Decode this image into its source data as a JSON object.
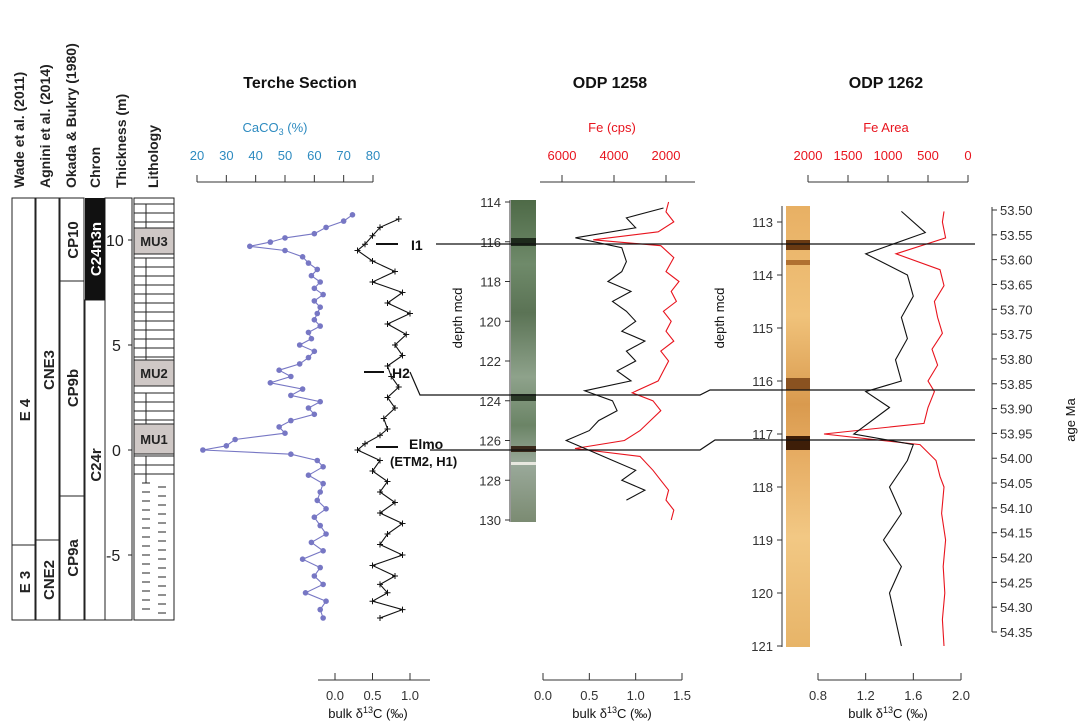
{
  "strat_headers": [
    "Wade et al. (2011)",
    "Agnini et al. (2014)",
    "Okada & Bukry (1980)",
    "Chron",
    "Thickness (m)",
    "Lithology"
  ],
  "zones": {
    "wade": [
      "E 4",
      "E 3"
    ],
    "agnini": [
      "CNE3",
      "CNE2"
    ],
    "okada": [
      "CP10",
      "CP9b",
      "CP9a"
    ],
    "chron": [
      "C24n3n",
      "C24r"
    ]
  },
  "thickness_ticks": [
    "10",
    "5",
    "0",
    "-5"
  ],
  "mud_units": [
    "MU3",
    "MU2",
    "MU1"
  ],
  "events": [
    {
      "label": "I1",
      "thick_m": 9.6
    },
    {
      "label": "H2",
      "thick_m": 3.7
    },
    {
      "label": "Elmo",
      "sublabel": "(ETM2, H1)",
      "thick_m": 0.2
    }
  ],
  "terche": {
    "title": "Terche Section",
    "caco3_label": "CaCO3 (%)",
    "caco3_ticks": [
      "20",
      "30",
      "40",
      "50",
      "60",
      "70",
      "80"
    ],
    "d13c_label": "bulk δ13C (‰)",
    "d13c_ticks": [
      "0.0",
      "0.5",
      "1.0"
    ]
  },
  "odp1258": {
    "title": "ODP 1258",
    "fe_label": "Fe (cps)",
    "fe_ticks": [
      "6000",
      "4000",
      "2000"
    ],
    "depth_label": "depth mcd",
    "depth_ticks": [
      "114",
      "116",
      "118",
      "120",
      "122",
      "124",
      "126",
      "128",
      "130"
    ],
    "d13c_label": "bulk δ13C (‰)",
    "d13c_ticks": [
      "0.0",
      "0.5",
      "1.0",
      "1.5"
    ]
  },
  "odp1262": {
    "title": "ODP 1262",
    "fe_label": "Fe Area",
    "fe_ticks": [
      "2000",
      "1500",
      "1000",
      "500",
      "0"
    ],
    "depth_label": "depth mcd",
    "depth_ticks": [
      "113",
      "114",
      "115",
      "116",
      "117",
      "118",
      "119",
      "120",
      "121"
    ],
    "d13c_label": "bulk δ13C (‰)",
    "d13c_ticks": [
      "0.8",
      "1.2",
      "1.6",
      "2.0"
    ]
  },
  "age_axis": {
    "label": "age Ma",
    "ticks": [
      "53.50",
      "53.55",
      "53.60",
      "53.65",
      "53.70",
      "53.75",
      "53.80",
      "53.85",
      "53.90",
      "53.95",
      "54.00",
      "54.05",
      "54.10",
      "54.15",
      "54.20",
      "54.25",
      "54.30",
      "54.35"
    ]
  },
  "colors": {
    "caco3": "#7777c4",
    "caco3_text": "#2e8bc0",
    "fe": "#e8141e",
    "d13c": "#111111",
    "mud_unit": "#cfc8c6"
  },
  "chart_data": [
    {
      "type": "line",
      "panel": "Terche Section",
      "y_axis": "Thickness (m)",
      "series": [
        {
          "name": "CaCO3 (%)",
          "x_unit": "%",
          "points": [
            [
              -8,
              63
            ],
            [
              -7.6,
              62
            ],
            [
              -7.2,
              64
            ],
            [
              -6.8,
              57
            ],
            [
              -6.4,
              63
            ],
            [
              -6,
              60
            ],
            [
              -5.6,
              62
            ],
            [
              -5.2,
              56
            ],
            [
              -4.8,
              63
            ],
            [
              -4.4,
              59
            ],
            [
              -4,
              64
            ],
            [
              -3.6,
              62
            ],
            [
              -3.2,
              60
            ],
            [
              -2.8,
              64
            ],
            [
              -2.4,
              61
            ],
            [
              -2,
              62
            ],
            [
              -1.6,
              63
            ],
            [
              -1.2,
              58
            ],
            [
              -0.8,
              63
            ],
            [
              -0.5,
              61
            ],
            [
              -0.2,
              52
            ],
            [
              0,
              22
            ],
            [
              0.2,
              30
            ],
            [
              0.5,
              33
            ],
            [
              0.8,
              50
            ],
            [
              1.1,
              48
            ],
            [
              1.4,
              52
            ],
            [
              1.7,
              60
            ],
            [
              2,
              58
            ],
            [
              2.3,
              62
            ],
            [
              2.6,
              52
            ],
            [
              2.9,
              56
            ],
            [
              3.2,
              45
            ],
            [
              3.5,
              52
            ],
            [
              3.8,
              48
            ],
            [
              4.1,
              55
            ],
            [
              4.4,
              58
            ],
            [
              4.7,
              60
            ],
            [
              5,
              55
            ],
            [
              5.3,
              59
            ],
            [
              5.6,
              58
            ],
            [
              5.9,
              62
            ],
            [
              6.2,
              60
            ],
            [
              6.5,
              61
            ],
            [
              6.8,
              62
            ],
            [
              7.1,
              60
            ],
            [
              7.4,
              63
            ],
            [
              7.7,
              60
            ],
            [
              8,
              62
            ],
            [
              8.3,
              59
            ],
            [
              8.6,
              61
            ],
            [
              8.9,
              58
            ],
            [
              9.2,
              56
            ],
            [
              9.5,
              50
            ],
            [
              9.7,
              38
            ],
            [
              9.9,
              45
            ],
            [
              10.1,
              50
            ],
            [
              10.3,
              60
            ],
            [
              10.6,
              64
            ],
            [
              10.9,
              70
            ],
            [
              11.2,
              73
            ]
          ]
        },
        {
          "name": "bulk δ13C (‰)",
          "x_unit": "‰",
          "points": [
            [
              -8,
              0.6
            ],
            [
              -7.6,
              0.9
            ],
            [
              -7.2,
              0.5
            ],
            [
              -6.8,
              0.7
            ],
            [
              -6.4,
              0.6
            ],
            [
              -6,
              0.8
            ],
            [
              -5.5,
              0.5
            ],
            [
              -5,
              0.9
            ],
            [
              -4.5,
              0.6
            ],
            [
              -4,
              0.7
            ],
            [
              -3.5,
              0.9
            ],
            [
              -3,
              0.6
            ],
            [
              -2.5,
              0.8
            ],
            [
              -2,
              0.6
            ],
            [
              -1.5,
              0.7
            ],
            [
              -1,
              0.5
            ],
            [
              -0.5,
              0.6
            ],
            [
              0,
              0.3
            ],
            [
              0.3,
              0.4
            ],
            [
              0.7,
              0.6
            ],
            [
              1,
              0.7
            ],
            [
              1.5,
              0.65
            ],
            [
              2,
              0.8
            ],
            [
              2.5,
              0.7
            ],
            [
              3,
              0.85
            ],
            [
              3.5,
              0.75
            ],
            [
              4,
              0.7
            ],
            [
              4.5,
              0.9
            ],
            [
              5,
              0.8
            ],
            [
              5.5,
              0.95
            ],
            [
              6,
              0.7
            ],
            [
              6.5,
              1.0
            ],
            [
              7,
              0.7
            ],
            [
              7.5,
              0.9
            ],
            [
              8,
              0.5
            ],
            [
              8.5,
              0.8
            ],
            [
              9,
              0.5
            ],
            [
              9.5,
              0.3
            ],
            [
              9.8,
              0.4
            ],
            [
              10.2,
              0.5
            ],
            [
              10.6,
              0.6
            ],
            [
              11,
              0.85
            ]
          ]
        }
      ],
      "xlim_caco3": [
        20,
        80
      ],
      "xlim_d13c": [
        0.0,
        1.0
      ]
    },
    {
      "type": "line",
      "panel": "ODP 1258",
      "y_axis": "depth mcd",
      "ylim": [
        114,
        130
      ],
      "series": [
        {
          "name": "Fe (cps)",
          "points": [
            [
              114,
              1900
            ],
            [
              114.5,
              2000
            ],
            [
              115,
              1700
            ],
            [
              115.5,
              2300
            ],
            [
              115.9,
              4800
            ],
            [
              116.2,
              2200
            ],
            [
              116.8,
              1700
            ],
            [
              117.5,
              2000
            ],
            [
              118,
              1500
            ],
            [
              118.5,
              1800
            ],
            [
              119,
              1600
            ],
            [
              119.5,
              2100
            ],
            [
              120,
              1800
            ],
            [
              120.5,
              2000
            ],
            [
              121,
              1700
            ],
            [
              121.5,
              2200
            ],
            [
              122,
              1900
            ],
            [
              122.5,
              2100
            ],
            [
              123,
              2300
            ],
            [
              123.6,
              3300
            ],
            [
              124,
              2500
            ],
            [
              124.5,
              2200
            ],
            [
              125,
              2600
            ],
            [
              125.5,
              3000
            ],
            [
              126,
              3600
            ],
            [
              126.4,
              5500
            ],
            [
              126.8,
              3000
            ],
            [
              127.5,
              2500
            ],
            [
              128,
              2200
            ],
            [
              128.5,
              1900
            ],
            [
              129,
              2000
            ],
            [
              129.5,
              1700
            ],
            [
              130,
              1800
            ]
          ]
        },
        {
          "name": "bulk δ13C (‰)",
          "points": [
            [
              114.3,
              1.3
            ],
            [
              114.8,
              0.9
            ],
            [
              115.3,
              1.0
            ],
            [
              115.8,
              0.35
            ],
            [
              116.3,
              0.85
            ],
            [
              117,
              0.9
            ],
            [
              117.5,
              0.85
            ],
            [
              118,
              0.7
            ],
            [
              118.5,
              0.95
            ],
            [
              119,
              0.75
            ],
            [
              119.5,
              0.9
            ],
            [
              120,
              1.0
            ],
            [
              120.5,
              0.85
            ],
            [
              121,
              1.1
            ],
            [
              121.5,
              0.9
            ],
            [
              122,
              1.0
            ],
            [
              122.5,
              0.8
            ],
            [
              123,
              0.95
            ],
            [
              123.5,
              0.45
            ],
            [
              124,
              0.75
            ],
            [
              124.5,
              0.8
            ],
            [
              125,
              0.6
            ],
            [
              125.5,
              0.5
            ],
            [
              126,
              0.25
            ],
            [
              126.5,
              0.5
            ],
            [
              127,
              0.75
            ],
            [
              127.5,
              1.0
            ],
            [
              128,
              0.85
            ],
            [
              128.5,
              1.1
            ],
            [
              129,
              0.9
            ]
          ]
        }
      ]
    },
    {
      "type": "line",
      "panel": "ODP 1262",
      "y_axis": "depth mcd",
      "ylim": [
        113,
        121
      ],
      "series": [
        {
          "name": "Fe Area",
          "points": [
            [
              112.8,
              300
            ],
            [
              113,
              320
            ],
            [
              113.3,
              280
            ],
            [
              113.6,
              900
            ],
            [
              113.9,
              350
            ],
            [
              114.2,
              300
            ],
            [
              114.5,
              420
            ],
            [
              114.8,
              380
            ],
            [
              115.1,
              320
            ],
            [
              115.4,
              450
            ],
            [
              115.7,
              380
            ],
            [
              116,
              500
            ],
            [
              116.2,
              420
            ],
            [
              116.5,
              500
            ],
            [
              116.8,
              550
            ],
            [
              117,
              1800
            ],
            [
              117.2,
              600
            ],
            [
              117.5,
              400
            ],
            [
              117.8,
              350
            ],
            [
              118,
              300
            ],
            [
              118.5,
              330
            ],
            [
              119,
              280
            ],
            [
              119.5,
              310
            ],
            [
              120,
              290
            ],
            [
              120.5,
              320
            ],
            [
              121,
              300
            ]
          ]
        },
        {
          "name": "bulk δ13C (‰)",
          "points": [
            [
              112.8,
              1.5
            ],
            [
              113.2,
              1.7
            ],
            [
              113.6,
              1.2
            ],
            [
              114,
              1.55
            ],
            [
              114.4,
              1.6
            ],
            [
              114.8,
              1.5
            ],
            [
              115.2,
              1.55
            ],
            [
              115.6,
              1.45
            ],
            [
              116,
              1.5
            ],
            [
              116.2,
              1.2
            ],
            [
              116.5,
              1.4
            ],
            [
              117,
              1.1
            ],
            [
              117.2,
              1.6
            ],
            [
              117.5,
              1.55
            ],
            [
              118,
              1.4
            ],
            [
              118.5,
              1.5
            ],
            [
              119,
              1.35
            ],
            [
              119.5,
              1.5
            ],
            [
              120,
              1.4
            ],
            [
              120.5,
              1.45
            ],
            [
              121,
              1.5
            ]
          ]
        }
      ]
    }
  ]
}
